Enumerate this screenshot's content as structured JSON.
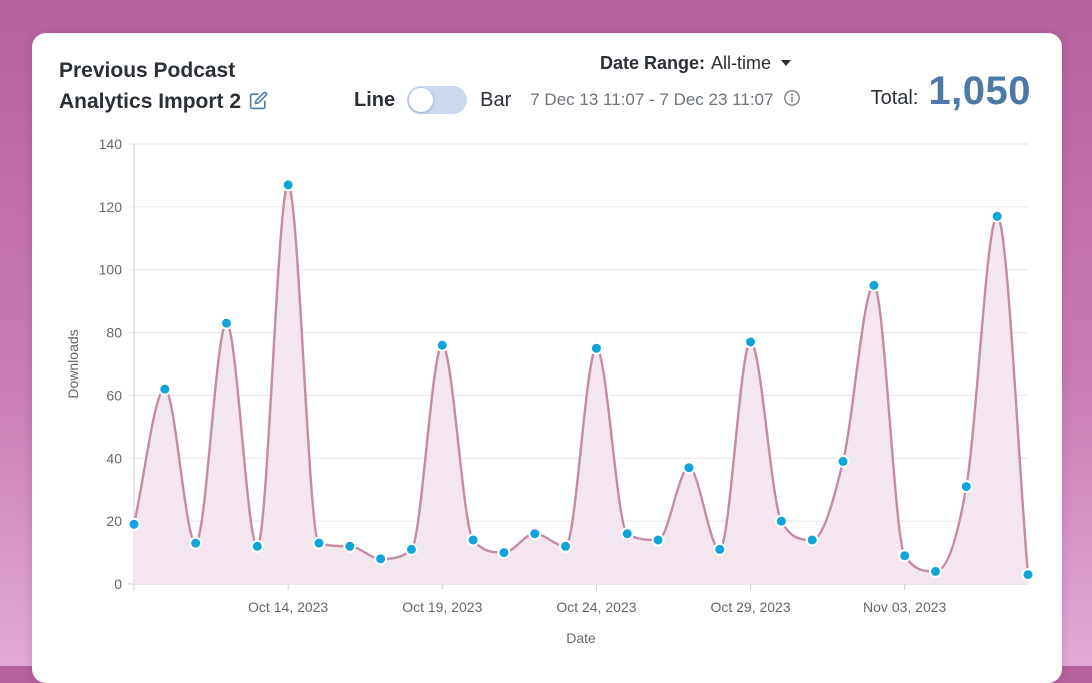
{
  "card": {
    "title_line1": "Previous Podcast",
    "title_line2": "Analytics Import 2",
    "date_range_label": "Date Range:",
    "date_range_value": "All-time",
    "toggle_line_label": "Line",
    "toggle_bar_label": "Bar",
    "period": "7 Dec 13 11:07 - 7 Dec 23 11:07",
    "total_label": "Total:",
    "total_value": "1,050",
    "icons": [
      "edit-icon",
      "caret-down-icon",
      "info-icon"
    ]
  },
  "colors": {
    "line": "#c48aa7",
    "area": "#f3e6ee",
    "point": "#0ea5dc",
    "total": "#4e79a7",
    "grid": "#e6e6e6"
  },
  "chart_data": {
    "type": "area",
    "xlabel": "Date",
    "ylabel": "Downloads",
    "ylim": [
      0,
      140
    ],
    "yticks": [
      "0",
      "20",
      "40",
      "60",
      "80",
      "100",
      "120",
      "140"
    ],
    "xtick_labels": [
      "Oct 14, 2023",
      "Oct 19, 2023",
      "Oct 24, 2023",
      "Oct 29, 2023",
      "Nov 03, 2023"
    ],
    "xtick_dates": [
      "2023-10-14",
      "2023-10-19",
      "2023-10-24",
      "2023-10-29",
      "2023-11-03"
    ],
    "x": [
      "2023-10-09",
      "2023-10-10",
      "2023-10-11",
      "2023-10-12",
      "2023-10-13",
      "2023-10-14",
      "2023-10-15",
      "2023-10-16",
      "2023-10-17",
      "2023-10-18",
      "2023-10-19",
      "2023-10-20",
      "2023-10-21",
      "2023-10-22",
      "2023-10-23",
      "2023-10-24",
      "2023-10-25",
      "2023-10-26",
      "2023-10-27",
      "2023-10-28",
      "2023-10-29",
      "2023-10-30",
      "2023-10-31",
      "2023-11-01",
      "2023-11-02",
      "2023-11-03",
      "2023-11-04",
      "2023-11-05",
      "2023-11-06",
      "2023-11-07"
    ],
    "values": [
      19,
      62,
      13,
      83,
      12,
      127,
      13,
      12,
      8,
      11,
      76,
      14,
      10,
      16,
      12,
      75,
      16,
      14,
      37,
      11,
      77,
      20,
      14,
      39,
      95,
      9,
      4,
      31,
      117,
      3
    ],
    "grid": true,
    "legend": "none",
    "smooth": true
  }
}
